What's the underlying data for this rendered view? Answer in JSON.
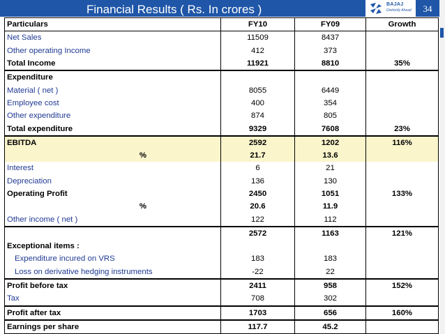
{
  "header": {
    "title": "Financial Results ( Rs. In crores )",
    "logo_word": "BAJAJ",
    "logo_tagline": "Distinctly Ahead",
    "slide_number": "34"
  },
  "colors": {
    "header_bar": "#1f56a8",
    "label_text": "#1f3a93",
    "highlight_row": "#fbf5cc"
  },
  "table": {
    "columns": [
      "Particulars",
      "FY10",
      "FY09",
      "Growth"
    ],
    "rows": [
      {
        "label": "Net Sales",
        "fy10": "11509",
        "fy09": "8437",
        "growth": "",
        "style": "normal"
      },
      {
        "label": "Other operating Income",
        "fy10": "412",
        "fy09": "373",
        "growth": "",
        "style": "normal"
      },
      {
        "label": "Total Income",
        "fy10": "11921",
        "fy09": "8810",
        "growth": "35%",
        "style": "total"
      },
      {
        "label": "Expenditure",
        "fy10": "",
        "fy09": "",
        "growth": "",
        "style": "bold"
      },
      {
        "label": "Material  ( net )",
        "fy10": "8055",
        "fy09": "6449",
        "growth": "",
        "style": "normal"
      },
      {
        "label": "Employee cost",
        "fy10": "400",
        "fy09": "354",
        "growth": "",
        "style": "normal"
      },
      {
        "label": "Other expenditure",
        "fy10": "874",
        "fy09": "805",
        "growth": "",
        "style": "normal"
      },
      {
        "label": "Total expenditure",
        "fy10": "9329",
        "fy09": "7608",
        "growth": "23%",
        "style": "total"
      },
      {
        "label": "EBITDA",
        "fy10": "2592",
        "fy09": "1202",
        "growth": "116%",
        "style": "bold-hl"
      },
      {
        "label": "%",
        "fy10": "21.7",
        "fy09": "13.6",
        "growth": "",
        "style": "pct-hl"
      },
      {
        "label": "Interest",
        "fy10": "6",
        "fy09": "21",
        "growth": "",
        "style": "normal"
      },
      {
        "label": "Depreciation",
        "fy10": "136",
        "fy09": "130",
        "growth": "",
        "style": "normal"
      },
      {
        "label": "Operating Profit",
        "fy10": "2450",
        "fy09": "1051",
        "growth": "133%",
        "style": "bold"
      },
      {
        "label": "%",
        "fy10": "20.6",
        "fy09": "11.9",
        "growth": "",
        "style": "pct"
      },
      {
        "label": "Other income  ( net )",
        "fy10": "122",
        "fy09": "112",
        "growth": "",
        "style": "normal-total"
      },
      {
        "label": "",
        "fy10": "2572",
        "fy09": "1163",
        "growth": "121%",
        "style": "bold"
      },
      {
        "label": "Exceptional items :",
        "fy10": "",
        "fy09": "",
        "growth": "",
        "style": "bold"
      },
      {
        "label": "Expenditure incured on VRS",
        "fy10": "183",
        "fy09": "183",
        "growth": "",
        "style": "indent"
      },
      {
        "label": "Loss on derivative hedging instruments",
        "fy10": "-22",
        "fy09": "22",
        "growth": "",
        "style": "indent-total"
      },
      {
        "label": "Profit before tax",
        "fy10": "2411",
        "fy09": "958",
        "growth": "152%",
        "style": "bold"
      },
      {
        "label": "Tax",
        "fy10": "708",
        "fy09": "302",
        "growth": "",
        "style": "normal-total"
      },
      {
        "label": "Profit after tax",
        "fy10": "1703",
        "fy09": "656",
        "growth": "160%",
        "style": "total"
      },
      {
        "label": "Earnings per share",
        "fy10": "117.7",
        "fy09": "45.2",
        "growth": "",
        "style": "bold-last"
      }
    ]
  }
}
